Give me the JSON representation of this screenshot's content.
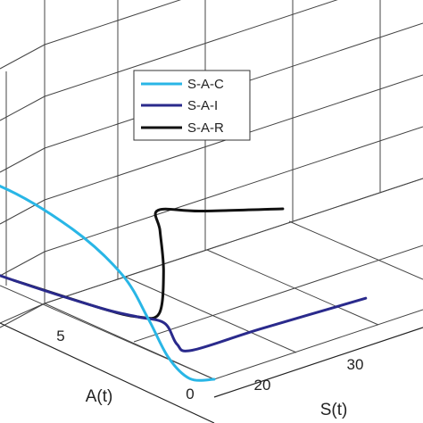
{
  "chart_data": {
    "type": "line",
    "projection": "3d",
    "title": "",
    "xlabel": "S(t)",
    "ylabel": "A(t)",
    "zlabel": "",
    "x_ticks": [
      "20",
      "30"
    ],
    "y_ticks": [
      "0",
      "5"
    ],
    "grid": true,
    "legend_position": "top-center",
    "colors": {
      "S-A-C": "#29b6e6",
      "S-A-I": "#2a2a8c",
      "S-A-R": "#111111"
    },
    "series": [
      {
        "name": "S-A-C",
        "points": [
          {
            "x": 2,
            "y": 11,
            "z": 3.8
          },
          {
            "x": 8,
            "y": 9,
            "z": 3.3
          },
          {
            "x": 12,
            "y": 6,
            "z": 2.6
          },
          {
            "x": 14,
            "y": 3.5,
            "z": 1.9
          },
          {
            "x": 15.5,
            "y": 2.5,
            "z": 1.1
          },
          {
            "x": 16.5,
            "y": 1.6,
            "z": 0.4
          },
          {
            "x": 17.5,
            "y": 0.6,
            "z": 0.05
          },
          {
            "x": 19.5,
            "y": 0,
            "z": 0
          }
        ]
      },
      {
        "name": "S-A-I",
        "points": [
          {
            "x": 2,
            "y": 11,
            "z": 2.2
          },
          {
            "x": 8,
            "y": 8,
            "z": 1.6
          },
          {
            "x": 13,
            "y": 4.5,
            "z": 1.2
          },
          {
            "x": 15,
            "y": 3,
            "z": 1.1
          },
          {
            "x": 17.5,
            "y": 2.5,
            "z": 0.9
          },
          {
            "x": 19.5,
            "y": 2.8,
            "z": 0.35
          },
          {
            "x": 22,
            "y": 3.2,
            "z": 0.05
          },
          {
            "x": 30,
            "y": 3,
            "z": 0.05
          },
          {
            "x": 42,
            "y": 2.5,
            "z": 0.05
          }
        ]
      },
      {
        "name": "S-A-R",
        "points": [
          {
            "x": 8,
            "y": 8,
            "z": 1.6
          },
          {
            "x": 13,
            "y": 4.5,
            "z": 1.2
          },
          {
            "x": 15,
            "y": 3,
            "z": 1.1
          },
          {
            "x": 17,
            "y": 2.6,
            "z": 1.1
          },
          {
            "x": 19,
            "y": 3.5,
            "z": 1.7
          },
          {
            "x": 21,
            "y": 5,
            "z": 2.2
          },
          {
            "x": 24,
            "y": 7,
            "z": 2.2
          },
          {
            "x": 30,
            "y": 7.5,
            "z": 1.8
          },
          {
            "x": 40,
            "y": 7.5,
            "z": 1.3
          }
        ]
      }
    ]
  }
}
